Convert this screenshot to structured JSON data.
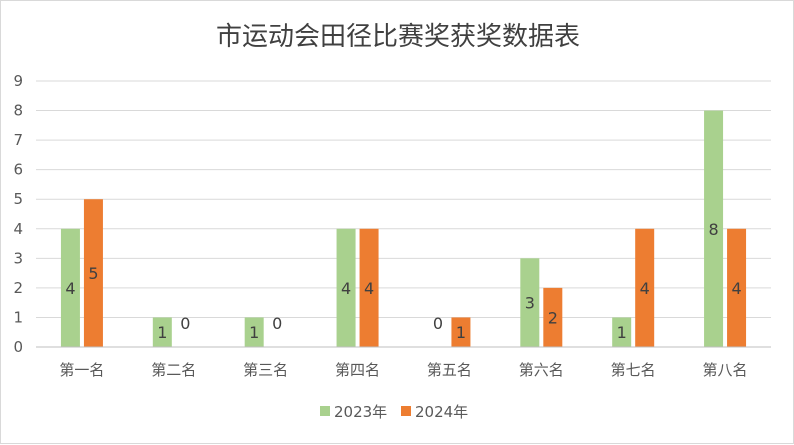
{
  "chart_data": {
    "type": "bar",
    "title": "市运动会田径比赛奖获奖数据表",
    "categories": [
      "第一名",
      "第二名",
      "第三名",
      "第四名",
      "第五名",
      "第六名",
      "第七名",
      "第八名"
    ],
    "series": [
      {
        "name": "2023年",
        "color": "#a9d18e",
        "values": [
          4,
          1,
          1,
          4,
          0,
          3,
          1,
          8
        ]
      },
      {
        "name": "2024年",
        "color": "#ed7d31",
        "values": [
          5,
          0,
          0,
          4,
          1,
          2,
          4,
          4
        ]
      }
    ],
    "ylim": [
      0,
      9
    ],
    "yticks": [
      0,
      1,
      2,
      3,
      4,
      5,
      6,
      7,
      8,
      9
    ],
    "grid": true,
    "legend": "bottom",
    "data_labels": true
  }
}
